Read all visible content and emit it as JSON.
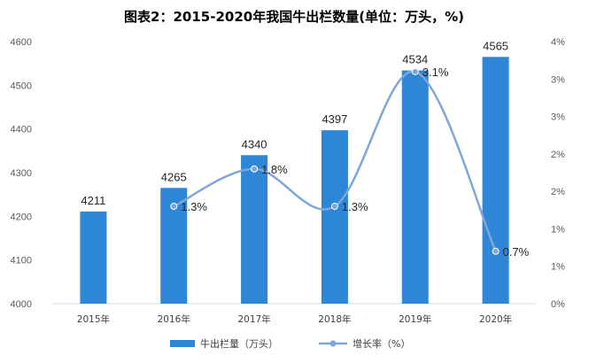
{
  "chart_data": {
    "type": "bar",
    "title": "图表2：2015-2020年我国牛出栏数量(单位：万头，%)",
    "categories": [
      "2015年",
      "2016年",
      "2017年",
      "2018年",
      "2019年",
      "2020年"
    ],
    "series": [
      {
        "name": "牛出栏量（万头）",
        "type": "bar",
        "axis": "left",
        "color": "#2E86D6",
        "values": [
          4211,
          4265,
          4340,
          4397,
          4534,
          4565
        ],
        "labels": [
          "4211",
          "4265",
          "4340",
          "4397",
          "4534",
          "4565"
        ]
      },
      {
        "name": "增长率（%）",
        "type": "line",
        "axis": "right",
        "color": "#7EA6D8",
        "values": [
          null,
          1.3,
          1.8,
          1.3,
          3.1,
          0.7
        ],
        "labels": [
          "",
          "1.3%",
          "1.8%",
          "1.3%",
          "3.1%",
          "0.7%"
        ]
      }
    ],
    "y_left": {
      "ylim": [
        4000,
        4600
      ],
      "ticks": [
        "4000",
        "4100",
        "4200",
        "4300",
        "4400",
        "4500",
        "4600"
      ]
    },
    "y_right": {
      "ylim": [
        0,
        3.5
      ],
      "ticks": [
        "0%",
        "1%",
        "1%",
        "2%",
        "2%",
        "3%",
        "3%",
        "4%"
      ]
    },
    "grid": false,
    "legend_position": "bottom"
  }
}
